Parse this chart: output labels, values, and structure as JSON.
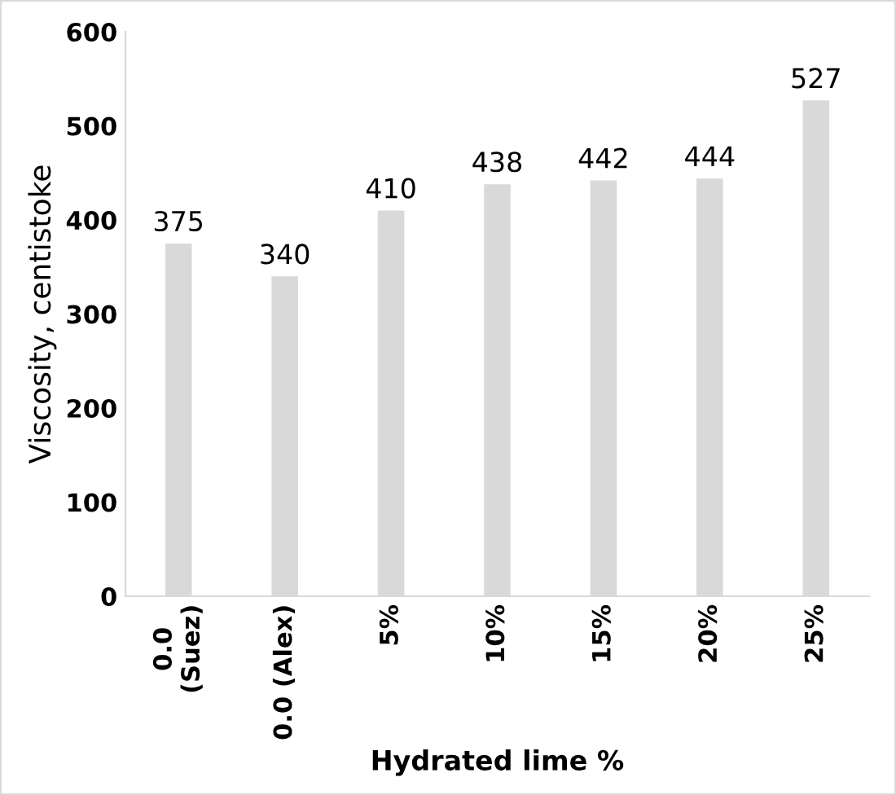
{
  "chart_data": {
    "type": "bar",
    "xlabel": "Hydrated lime %",
    "ylabel": "Viscosity, centistoke",
    "categories": [
      "0.0\n(Suez)",
      "0.0 (Alex)",
      "5%",
      "10%",
      "15%",
      "20%",
      "25%"
    ],
    "values": [
      375,
      340,
      410,
      438,
      442,
      444,
      527
    ],
    "color": "#d9d9d9",
    "ylim": [
      0,
      600
    ],
    "yticks": [
      0,
      100,
      200,
      300,
      400,
      500,
      600
    ],
    "grid": false,
    "data_labels": true
  }
}
